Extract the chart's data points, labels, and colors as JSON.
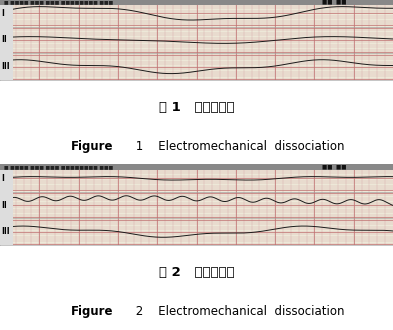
{
  "overall_bg": "#ffffff",
  "ecg_bg": "#ede8d8",
  "grid_minor_color": "#d4a0a0",
  "grid_major_color": "#c07070",
  "line_color": "#1a1a1a",
  "header_bg": "#888888",
  "border_color": "#999999",
  "left_label_bg": "#dddddd",
  "fig1_caption_zh": "图 1   电机械分离",
  "fig1_caption_en_bold": "Figure",
  "fig1_caption_en_num": " 1",
  "fig1_caption_en_rest": "    Electromechanical  dissociation",
  "fig2_caption_zh": "图 2   电机械分离",
  "fig2_caption_en_bold": "Figure",
  "fig2_caption_en_num": " 2",
  "fig2_caption_en_rest": "    Electromechanical  dissociation",
  "row_labels": [
    "I",
    "II",
    "III"
  ],
  "caption_zh_fontsize": 9.5,
  "caption_en_fontsize": 8.5,
  "panel_border": "#aaaaaa"
}
